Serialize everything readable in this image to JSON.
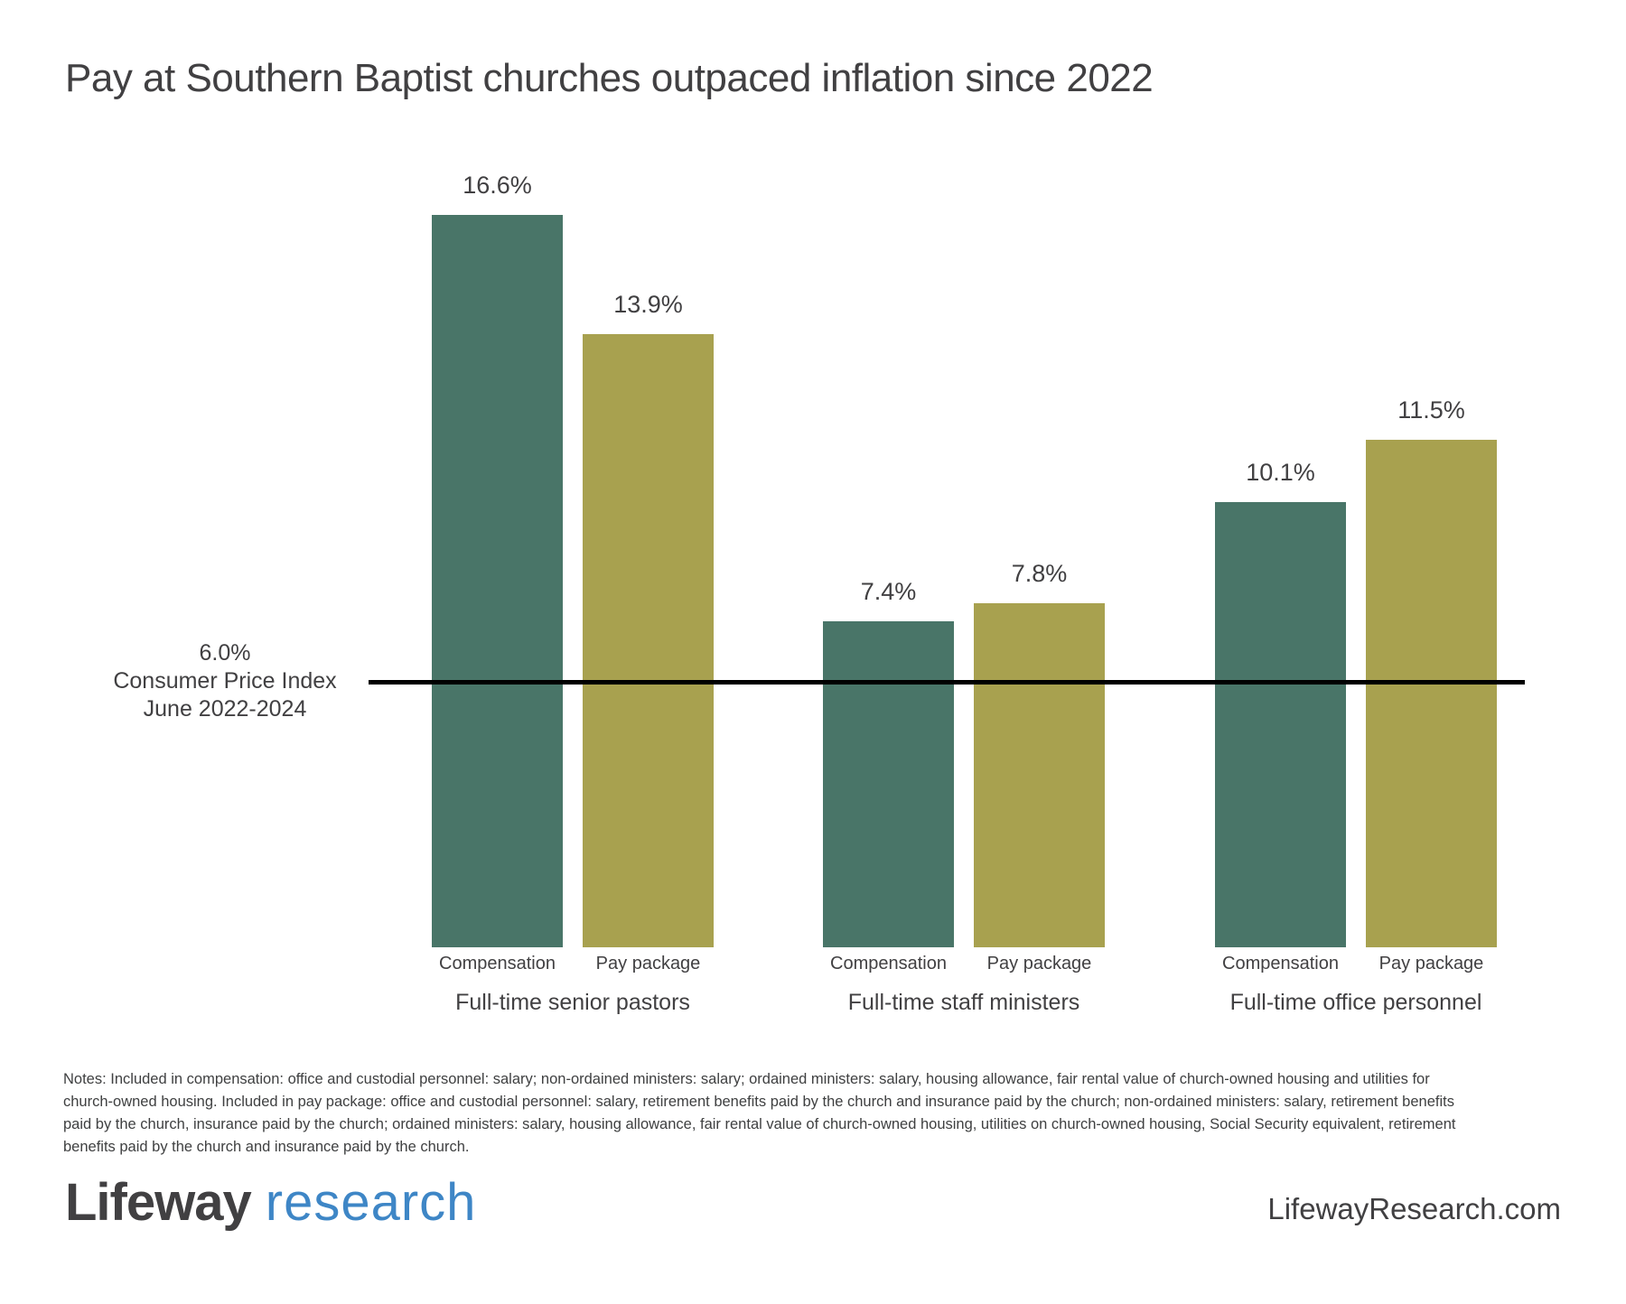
{
  "title": "Pay at Southern Baptist churches outpaced inflation since 2022",
  "chart_data": {
    "type": "bar",
    "categories": [
      "Full-time senior pastors",
      "Full-time staff ministers",
      "Full-time office personnel"
    ],
    "series": [
      {
        "name": "Compensation",
        "values": [
          16.6,
          7.4,
          10.1
        ],
        "color": "#497568"
      },
      {
        "name": "Pay package",
        "values": [
          13.9,
          7.8,
          11.5
        ],
        "color": "#a8a14f"
      }
    ],
    "value_labels": [
      [
        "16.6%",
        "13.9%"
      ],
      [
        "7.4%",
        "7.8%"
      ],
      [
        "10.1%",
        "11.5%"
      ]
    ],
    "unit": "%",
    "y_axis": {
      "visible": false,
      "min": 0,
      "implied_max": 18
    },
    "grid": false,
    "legend": "none",
    "reference_line": {
      "value": 6.0,
      "color": "#000000",
      "label_lines": [
        "6.0%",
        "Consumer Price Index",
        "June 2022-2024"
      ]
    },
    "colors": {
      "bar_compensation": "#497568",
      "bar_pay_package": "#a8a14f",
      "reference_line": "#000000",
      "text": "#414042"
    }
  },
  "notes_lines": [
    "Notes: Included in compensation: office and custodial personnel: salary; non-ordained ministers: salary; ordained ministers: salary, housing allowance, fair rental value of church-owned housing and utilities for",
    "church-owned housing. Included in pay package: office and custodial personnel: salary, retirement benefits paid by the church and insurance paid by the church; non-ordained ministers: salary, retirement benefits",
    "paid by the church, insurance paid by the church; ordained ministers: salary, housing allowance, fair rental value of church-owned housing, utilities on church-owned housing, Social Security equivalent, retirement",
    "benefits paid by the church and insurance paid by the church."
  ],
  "footer": {
    "logo_primary": "Lifeway",
    "logo_secondary": "research",
    "logo_blue": "#3e86c6",
    "website": "LifewayResearch.com"
  }
}
